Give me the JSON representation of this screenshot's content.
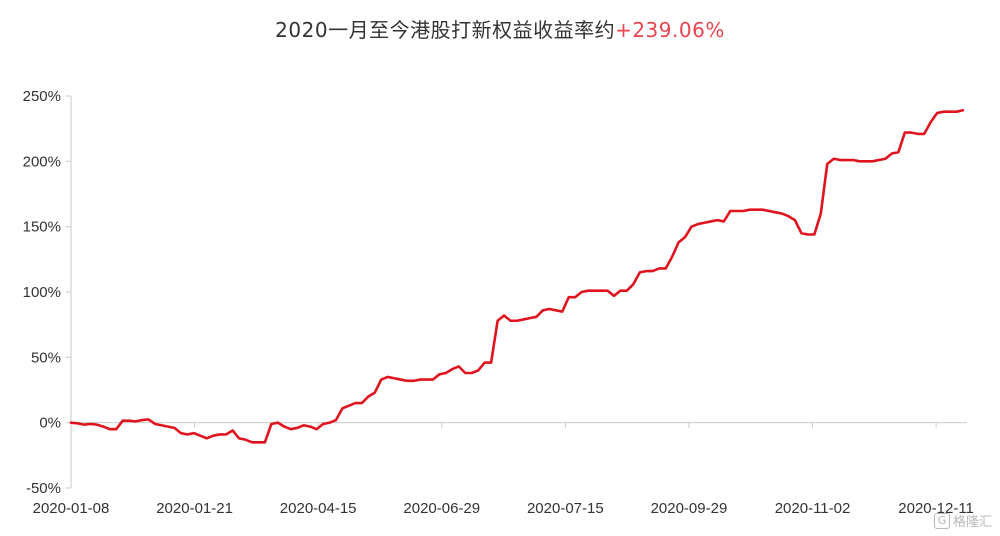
{
  "title": {
    "main": "2020一月至今港股打新权益收益率约",
    "highlight": "+239.06%"
  },
  "colors": {
    "line": "#e0141e",
    "highlight": "#e8464e",
    "axis": "#c9c9c9",
    "text": "#333333"
  },
  "watermark": {
    "icon": "G",
    "text": "格隆汇"
  },
  "chart_data": {
    "type": "line",
    "title": "2020一月至今港股打新权益收益率约+239.06%",
    "xlabel": "",
    "ylabel": "",
    "ylim": [
      -50,
      250
    ],
    "y_ticks": [
      "-50%",
      "0%",
      "50%",
      "100%",
      "150%",
      "200%",
      "250%"
    ],
    "x_tick_labels": [
      "2020-01-08",
      "2020-01-21",
      "2020-04-15",
      "2020-06-29",
      "2020-07-15",
      "2020-09-29",
      "2020-11-02",
      "2020-12-11"
    ],
    "grid": false,
    "legend": "none",
    "series": [
      {
        "values": [
          0,
          -0.5,
          -1.5,
          -1,
          -1.5,
          -3,
          -5,
          -5,
          1.5,
          1.5,
          1,
          2,
          2.5,
          -1,
          -2,
          -3,
          -4,
          -8,
          -9,
          -8,
          -10,
          -12,
          -10,
          -9,
          -9,
          -6,
          -12,
          -13,
          -15,
          -15,
          -15,
          -1,
          0,
          -3,
          -5,
          -4,
          -2,
          -3,
          -5,
          -1,
          0,
          2,
          11,
          13,
          15,
          15,
          20,
          23,
          33,
          35,
          34,
          33,
          32,
          32,
          33,
          33,
          33,
          37,
          38,
          41,
          43,
          38,
          38,
          40,
          46,
          46,
          78,
          82,
          78,
          78,
          79,
          80,
          81,
          86,
          87,
          86,
          85,
          96,
          96,
          100,
          101,
          101,
          101,
          101,
          97,
          101,
          101,
          106,
          115,
          116,
          116,
          118,
          118,
          127,
          138,
          142,
          150,
          152,
          153,
          154,
          155,
          154,
          162,
          162,
          162,
          163,
          163,
          163,
          162,
          161,
          160,
          158,
          155,
          145,
          144,
          144,
          160,
          198,
          202,
          201,
          201,
          201,
          200,
          200,
          200,
          201,
          202,
          206,
          207,
          222,
          222,
          221,
          221,
          230,
          237,
          238,
          238,
          238,
          239.06
        ]
      }
    ]
  }
}
